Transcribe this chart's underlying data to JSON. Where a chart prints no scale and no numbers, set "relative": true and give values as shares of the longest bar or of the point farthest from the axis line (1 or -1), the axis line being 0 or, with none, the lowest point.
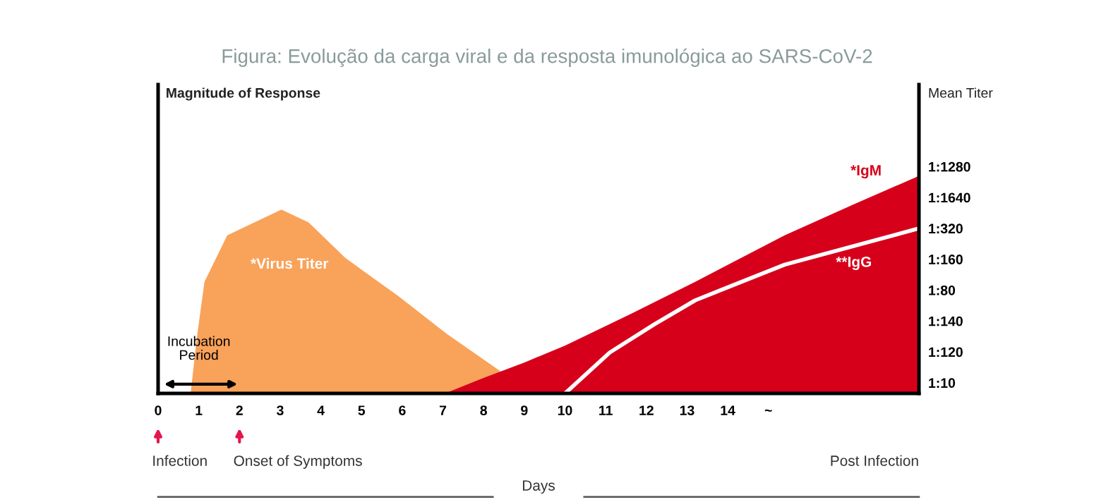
{
  "chart_data": {
    "type": "area",
    "relative": true,
    "title": "Figura: Evolução da carga viral e da resposta imunológica ao SARS-CoV-2",
    "xlabel": "Days",
    "series": [
      {
        "name": "*Virus Titer",
        "color": "#f9a25a",
        "x": [
          0.8,
          0.95,
          1.14,
          1.7,
          3.03,
          3.7,
          4.6,
          5.9,
          7.1,
          8.4,
          8.6
        ],
        "values": [
          0,
          0.253,
          0.513,
          0.727,
          0.845,
          0.786,
          0.623,
          0.448,
          0.273,
          0.104,
          0
        ]
      },
      {
        "name": "*IgM",
        "color": "#d7001b",
        "x": [
          7.05,
          8,
          9,
          10,
          11.6,
          13.2,
          15.4,
          17.1,
          18.7
        ],
        "values": [
          0,
          0.071,
          0.142,
          0.22,
          0.364,
          0.513,
          0.727,
          0.87,
          1.0
        ]
      },
      {
        "name": "**IgG",
        "type": "line",
        "color": "#ffffff",
        "x": [
          10,
          11.1,
          12.2,
          13.2,
          15.4,
          18.7
        ],
        "values": [
          0,
          0.188,
          0.318,
          0.428,
          0.592,
          0.759
        ]
      }
    ],
    "xlim": [
      0,
      18.7
    ],
    "xticks": [
      0,
      1,
      2,
      3,
      4,
      5,
      6,
      7,
      8,
      9,
      10,
      11,
      12,
      13,
      14,
      {
        "value": 15,
        "label": "~"
      }
    ],
    "annotations": [
      "Magnitude of Response",
      "Mean Titer",
      "Incubation Period",
      "Infection",
      "Onset of Symptoms",
      "Post Infection",
      "1:1280",
      "1:1640",
      "1:320",
      "1:160",
      "1:80",
      "1:140",
      "1:120",
      "1:10"
    ],
    "grid": false,
    "legend": false,
    "line_style": "solid"
  }
}
